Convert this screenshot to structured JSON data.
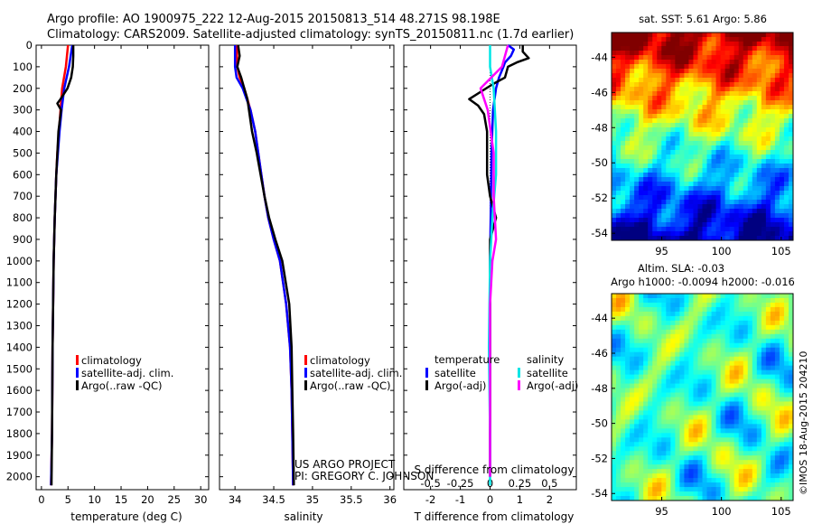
{
  "header": {
    "line1": "Argo profile: AO 1900975_222 12-Aug-2015 20150813_514 48.271S 98.198E",
    "line2": "Climatology: CARS2009. Satellite-adjusted climatology: synTS_20150811.nc (1.7d earlier)"
  },
  "colors": {
    "climatology": "#ff0000",
    "satellite": "#0000ff",
    "argo": "#000000",
    "salinity_satellite": "#00e5e5",
    "salinity_argo": "#ff00ff"
  },
  "credit": {
    "line1": "US ARGO PROJECT",
    "line2": "PI: GREGORY C. JOHNSON",
    "imos": "©IMOS 18-Aug-2015 204210"
  },
  "chart_data": [
    {
      "type": "line",
      "xlabel": "temperature (deg C)",
      "xticks": [
        0,
        5,
        10,
        15,
        20,
        25,
        30
      ],
      "xlim": [
        -1,
        31.5
      ],
      "ylim": [
        0,
        2060
      ],
      "yticks": [
        0,
        100,
        200,
        300,
        400,
        500,
        600,
        700,
        800,
        900,
        1000,
        1100,
        1200,
        1300,
        1400,
        1500,
        1600,
        1700,
        1800,
        1900,
        2000
      ],
      "legend": [
        "climatology",
        "satellite-adj. clim.",
        "Argo(..raw -QC)"
      ],
      "series": [
        {
          "key": "climatology",
          "depth": [
            0,
            100,
            200,
            300,
            400,
            500,
            600,
            800,
            1000,
            1400,
            1800,
            2040
          ],
          "values": [
            5.0,
            4.6,
            3.9,
            3.6,
            3.3,
            3.0,
            2.8,
            2.5,
            2.3,
            2.1,
            2.0,
            1.8
          ]
        },
        {
          "key": "satellite",
          "depth": [
            0,
            100,
            200,
            300,
            400,
            500,
            600,
            800,
            1000,
            1400,
            1800,
            2040
          ],
          "values": [
            5.8,
            5.2,
            4.3,
            3.8,
            3.4,
            3.1,
            2.8,
            2.5,
            2.3,
            2.1,
            2.0,
            1.8
          ]
        },
        {
          "key": "argo",
          "depth": [
            0,
            50,
            100,
            150,
            200,
            250,
            270,
            300,
            400,
            500,
            600,
            800,
            1000,
            1400,
            1800,
            2040
          ],
          "values": [
            6.0,
            6.0,
            5.9,
            5.6,
            4.9,
            3.6,
            3.0,
            3.7,
            3.2,
            3.0,
            2.8,
            2.5,
            2.3,
            2.1,
            2.0,
            1.9
          ]
        }
      ]
    },
    {
      "type": "line",
      "xlabel": "salinity",
      "xticks": [
        34,
        34.5,
        35,
        35.5,
        36
      ],
      "xlim": [
        33.8,
        36.05
      ],
      "ylim": [
        0,
        2060
      ],
      "legend": [
        "climatology",
        "satellite-adj. clim.",
        "Argo(..raw -QC)"
      ],
      "series": [
        {
          "key": "climatology",
          "depth": [
            0,
            100,
            150,
            200,
            300,
            400,
            500,
            600,
            700,
            800,
            900,
            1000,
            1200,
            1400,
            1600,
            1800,
            2040
          ],
          "values": [
            34.02,
            34.03,
            34.06,
            34.12,
            34.2,
            34.26,
            34.3,
            34.34,
            34.38,
            34.43,
            34.5,
            34.58,
            34.66,
            34.71,
            34.73,
            34.74,
            34.75
          ]
        },
        {
          "key": "satellite",
          "depth": [
            0,
            100,
            150,
            200,
            300,
            400,
            500,
            600,
            700,
            800,
            900,
            1000,
            1200,
            1400,
            1600,
            1800,
            2040
          ],
          "values": [
            34.0,
            34.0,
            34.02,
            34.1,
            34.2,
            34.26,
            34.3,
            34.34,
            34.38,
            34.43,
            34.5,
            34.58,
            34.66,
            34.71,
            34.73,
            34.74,
            34.75
          ]
        },
        {
          "key": "argo",
          "depth": [
            0,
            50,
            100,
            150,
            200,
            250,
            300,
            400,
            500,
            600,
            700,
            800,
            900,
            1000,
            1200,
            1400,
            1600,
            1800,
            2040
          ],
          "values": [
            34.04,
            34.06,
            34.03,
            34.08,
            34.12,
            34.16,
            34.18,
            34.22,
            34.28,
            34.33,
            34.38,
            34.44,
            34.52,
            34.61,
            34.7,
            34.73,
            34.74,
            34.75,
            34.76
          ]
        }
      ]
    },
    {
      "type": "line",
      "xlabel": "T difference from climatology",
      "xlabel_top": "S difference from climatology",
      "xticks": [
        -2,
        -1,
        0,
        1,
        2
      ],
      "xticks_top": [
        "-0.5",
        "-0.25",
        "0",
        "0.25",
        "0.5"
      ],
      "xlim": [
        -2.9,
        2.9
      ],
      "ylim": [
        0,
        2060
      ],
      "legend_groups": [
        {
          "title": "temperature",
          "items": [
            "satellite",
            "Argo(-adj)"
          ]
        },
        {
          "title": "salinity",
          "items": [
            "satellite",
            "Argo(-adj)"
          ]
        }
      ],
      "series": [
        {
          "key": "t_satellite",
          "depth": [
            0,
            20,
            50,
            80,
            100,
            150,
            200,
            300,
            500,
            800,
            1000,
            1500,
            2000
          ],
          "values": [
            0.6,
            0.8,
            0.7,
            0.5,
            0.45,
            0.3,
            0.2,
            0.1,
            0.05,
            0.02,
            0,
            0,
            0
          ]
        },
        {
          "key": "t_argo",
          "depth": [
            0,
            30,
            60,
            80,
            100,
            150,
            180,
            250,
            280,
            320,
            400,
            500,
            600,
            700,
            800,
            900,
            1000,
            2000
          ],
          "values": [
            1.1,
            1.1,
            1.3,
            0.9,
            0.6,
            0.5,
            0.1,
            -0.7,
            -0.4,
            -0.2,
            -0.1,
            -0.1,
            -0.1,
            0,
            0.2,
            0,
            0,
            0
          ]
        },
        {
          "key": "s_satellite",
          "depth": [
            0,
            100,
            200,
            400,
            600,
            800,
            1000,
            1400,
            1800,
            2040
          ],
          "values": [
            0,
            0,
            0.03,
            0.05,
            0.05,
            0.02,
            0,
            -0.01,
            0,
            0
          ]
        },
        {
          "key": "s_argo",
          "depth": [
            0,
            100,
            200,
            300,
            500,
            700,
            900,
            1000,
            1200,
            1400,
            2000
          ],
          "values": [
            0.15,
            0.1,
            -0.08,
            -0.02,
            0.03,
            0.03,
            0.05,
            0.02,
            0,
            0,
            0
          ]
        }
      ]
    },
    {
      "type": "heatmap",
      "title": "sat. SST: 5.61 Argo: 5.86",
      "xticks": [
        95,
        100,
        105
      ],
      "yticks": [
        -44,
        -46,
        -48,
        -50,
        -52,
        -54
      ],
      "xlim": [
        90.8,
        106
      ],
      "ylim": [
        -54.4,
        -42.6
      ]
    },
    {
      "type": "heatmap",
      "title_line1": "Altim. SLA: -0.03",
      "title_line2": "Argo h1000: -0.0094 h2000: -0.016",
      "xticks": [
        95,
        100,
        105
      ],
      "yticks": [
        -44,
        -46,
        -48,
        -50,
        -52,
        -54
      ],
      "xlim": [
        90.8,
        106
      ],
      "ylim": [
        -54.4,
        -42.6
      ]
    }
  ]
}
